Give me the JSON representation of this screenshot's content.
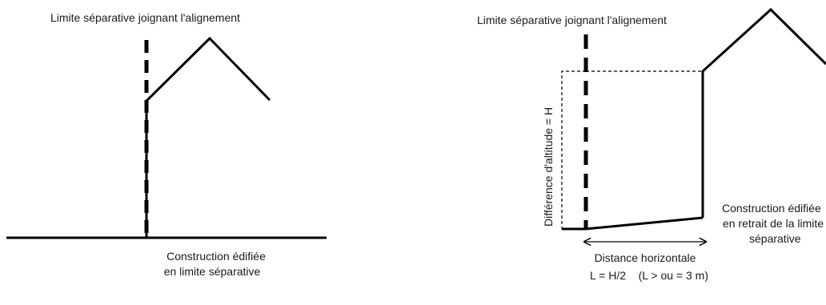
{
  "left_diagram": {
    "limit_label": "Limite séparative joignant l'alignement",
    "caption_line1": "Construction édifiée",
    "caption_line2": "en limite séparative"
  },
  "right_diagram": {
    "limit_label": "Limite séparative joignant l'alignement",
    "height_label": "Différence d'altitude = H",
    "caption_line1": "Construction édifiée",
    "caption_line2": "en retrait de la limite",
    "caption_line3": "séparative",
    "distance_label": "Distance horizontale",
    "formula_label": "L = H/2    (L > ou = 3 m)"
  }
}
